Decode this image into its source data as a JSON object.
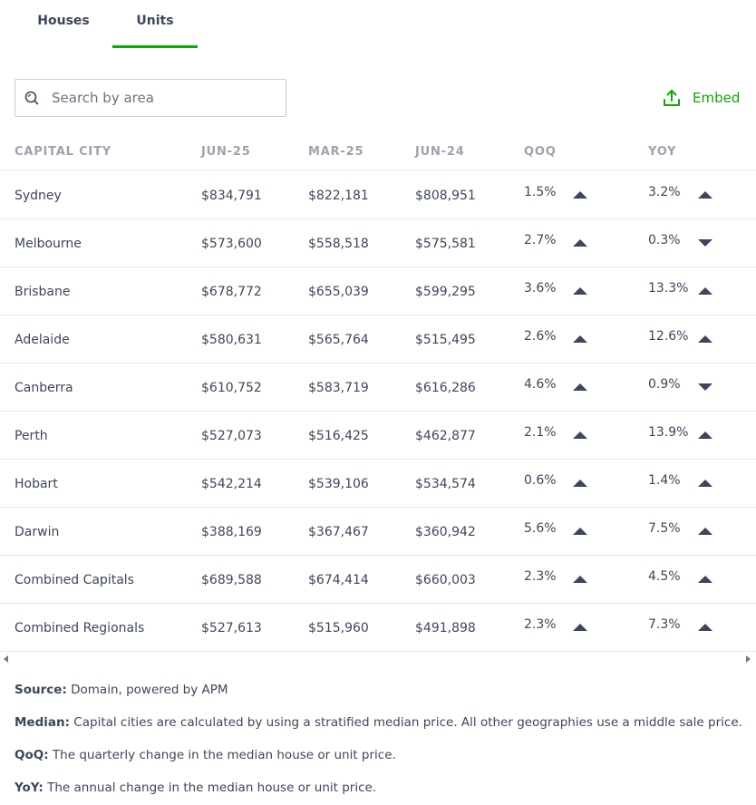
{
  "tabs": [
    {
      "label": "Houses",
      "active": false
    },
    {
      "label": "Units",
      "active": true
    }
  ],
  "accent_color": "#0ea800",
  "search": {
    "placeholder": "Search by area",
    "value": ""
  },
  "embed": {
    "label": "Embed",
    "icon": "upload-icon"
  },
  "table": {
    "headers": [
      "CAPITAL CITY",
      "JUN-25",
      "MAR-25",
      "JUN-24",
      "QOQ",
      "YOY"
    ],
    "rows": [
      {
        "city": "Sydney",
        "jun25": "$834,791",
        "mar25": "$822,181",
        "jun24": "$808,951",
        "qoq": "1.5%",
        "qoq_dir": "up",
        "yoy": "3.2%",
        "yoy_dir": "up"
      },
      {
        "city": "Melbourne",
        "jun25": "$573,600",
        "mar25": "$558,518",
        "jun24": "$575,581",
        "qoq": "2.7%",
        "qoq_dir": "up",
        "yoy": "0.3%",
        "yoy_dir": "down"
      },
      {
        "city": "Brisbane",
        "jun25": "$678,772",
        "mar25": "$655,039",
        "jun24": "$599,295",
        "qoq": "3.6%",
        "qoq_dir": "up",
        "yoy": "13.3%",
        "yoy_dir": "up"
      },
      {
        "city": "Adelaide",
        "jun25": "$580,631",
        "mar25": "$565,764",
        "jun24": "$515,495",
        "qoq": "2.6%",
        "qoq_dir": "up",
        "yoy": "12.6%",
        "yoy_dir": "up"
      },
      {
        "city": "Canberra",
        "jun25": "$610,752",
        "mar25": "$583,719",
        "jun24": "$616,286",
        "qoq": "4.6%",
        "qoq_dir": "up",
        "yoy": "0.9%",
        "yoy_dir": "down"
      },
      {
        "city": "Perth",
        "jun25": "$527,073",
        "mar25": "$516,425",
        "jun24": "$462,877",
        "qoq": "2.1%",
        "qoq_dir": "up",
        "yoy": "13.9%",
        "yoy_dir": "up"
      },
      {
        "city": "Hobart",
        "jun25": "$542,214",
        "mar25": "$539,106",
        "jun24": "$534,574",
        "qoq": "0.6%",
        "qoq_dir": "up",
        "yoy": "1.4%",
        "yoy_dir": "up"
      },
      {
        "city": "Darwin",
        "jun25": "$388,169",
        "mar25": "$367,467",
        "jun24": "$360,942",
        "qoq": "5.6%",
        "qoq_dir": "up",
        "yoy": "7.5%",
        "yoy_dir": "up"
      },
      {
        "city": "Combined Capitals",
        "jun25": "$689,588",
        "mar25": "$674,414",
        "jun24": "$660,003",
        "qoq": "2.3%",
        "qoq_dir": "up",
        "yoy": "4.5%",
        "yoy_dir": "up"
      },
      {
        "city": "Combined Regionals",
        "jun25": "$527,613",
        "mar25": "$515,960",
        "jun24": "$491,898",
        "qoq": "2.3%",
        "qoq_dir": "up",
        "yoy": "7.3%",
        "yoy_dir": "up"
      }
    ]
  },
  "notes": [
    {
      "label": "Source:",
      "text": " Domain, powered by APM"
    },
    {
      "label": "Median:",
      "text": " Capital cities are calculated by using a stratified median price. All other geographies use a middle sale price."
    },
    {
      "label": "QoQ:",
      "text": " The quarterly change in the median house or unit price."
    },
    {
      "label": "YoY:",
      "text": " The annual change in the median house or unit price."
    }
  ]
}
